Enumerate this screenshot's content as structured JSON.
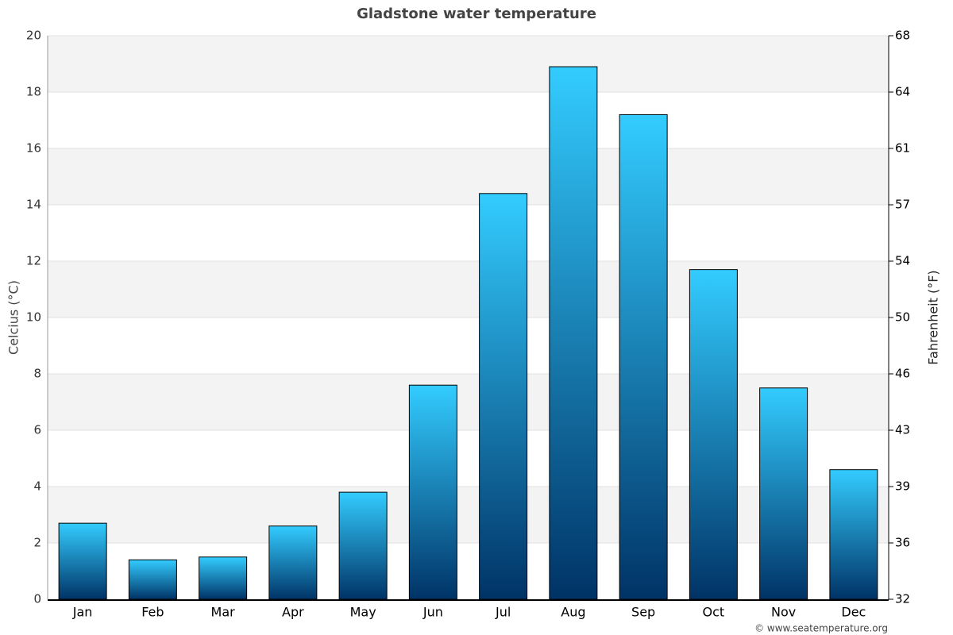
{
  "chart_data": {
    "type": "bar",
    "title": "Gladstone water temperature",
    "ylabel": "Celcius (°C)",
    "y2label": "Fahrenheit (°F)",
    "categories": [
      "Jan",
      "Feb",
      "Mar",
      "Apr",
      "May",
      "Jun",
      "Jul",
      "Aug",
      "Sep",
      "Oct",
      "Nov",
      "Dec"
    ],
    "values": [
      2.7,
      1.4,
      1.5,
      2.6,
      3.8,
      7.6,
      14.4,
      18.9,
      17.2,
      11.7,
      7.5,
      4.6
    ],
    "gradient": [
      "#33ccff",
      "#003366"
    ],
    "ylim": [
      0,
      20
    ],
    "yticks": [
      0,
      2,
      4,
      6,
      8,
      10,
      12,
      14,
      16,
      18,
      20
    ],
    "y2lim": [
      32,
      68
    ],
    "y2ticks": [
      32,
      {
        "value": 35.6,
        "label": "36"
      },
      {
        "value": 39.2,
        "label": "39"
      },
      {
        "value": 42.8,
        "label": "43"
      },
      {
        "value": 46.4,
        "label": "46"
      },
      50,
      {
        "value": 53.6,
        "label": "54"
      },
      {
        "value": 57.2,
        "label": "57"
      },
      {
        "value": 60.8,
        "label": "61"
      },
      {
        "value": 64.4,
        "label": "64"
      },
      68
    ],
    "grid": true,
    "banded": true,
    "credit": "© www.seatemperature.org"
  }
}
